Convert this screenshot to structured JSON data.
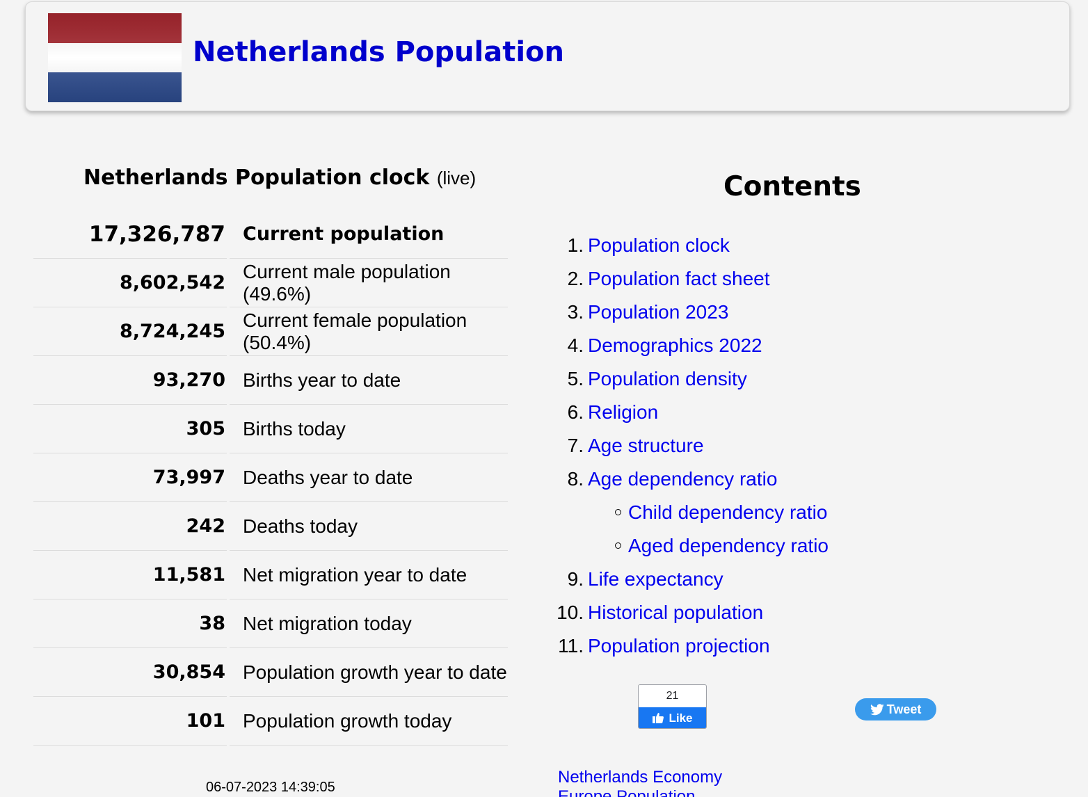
{
  "header": {
    "title": "Netherlands Population",
    "flag_colors": [
      "#ae1c28",
      "#ffffff",
      "#21468b"
    ]
  },
  "clock": {
    "heading": "Netherlands Population clock",
    "heading_suffix": "(live)",
    "rows": [
      {
        "value": "17,326,787",
        "label": "Current population"
      },
      {
        "value": "8,602,542",
        "label": "Current male population (49.6%)"
      },
      {
        "value": "8,724,245",
        "label": "Current female population (50.4%)"
      },
      {
        "value": "93,270",
        "label": "Births year to date"
      },
      {
        "value": "305",
        "label": "Births today"
      },
      {
        "value": "73,997",
        "label": "Deaths year to date"
      },
      {
        "value": "242",
        "label": "Deaths today"
      },
      {
        "value": "11,581",
        "label": "Net migration year to date"
      },
      {
        "value": "38",
        "label": "Net migration today"
      },
      {
        "value": "30,854",
        "label": "Population growth year to date"
      },
      {
        "value": "101",
        "label": "Population growth today"
      }
    ],
    "timestamp": "06-07-2023 14:39:05"
  },
  "contents": {
    "title": "Contents",
    "items": [
      {
        "num": "1.",
        "label": "Population clock"
      },
      {
        "num": "2.",
        "label": "Population fact sheet"
      },
      {
        "num": "3.",
        "label": "Population 2023"
      },
      {
        "num": "4.",
        "label": "Demographics 2022"
      },
      {
        "num": "5.",
        "label": "Population density"
      },
      {
        "num": "6.",
        "label": "Religion"
      },
      {
        "num": "7.",
        "label": "Age structure"
      },
      {
        "num": "8.",
        "label": "Age dependency ratio"
      },
      {
        "num": "",
        "label": "Child dependency ratio"
      },
      {
        "num": "",
        "label": "Aged dependency ratio"
      },
      {
        "num": "9.",
        "label": "Life expectancy"
      },
      {
        "num": "10.",
        "label": "Historical population"
      },
      {
        "num": "11.",
        "label": "Population projection"
      }
    ]
  },
  "social": {
    "like_count": "21",
    "like_label": "Like",
    "tweet_label": "Tweet",
    "like_color": "#1877f2",
    "tweet_color": "#3a9bec"
  },
  "links": {
    "economy": "Netherlands Economy",
    "partial": "Europe Population"
  }
}
